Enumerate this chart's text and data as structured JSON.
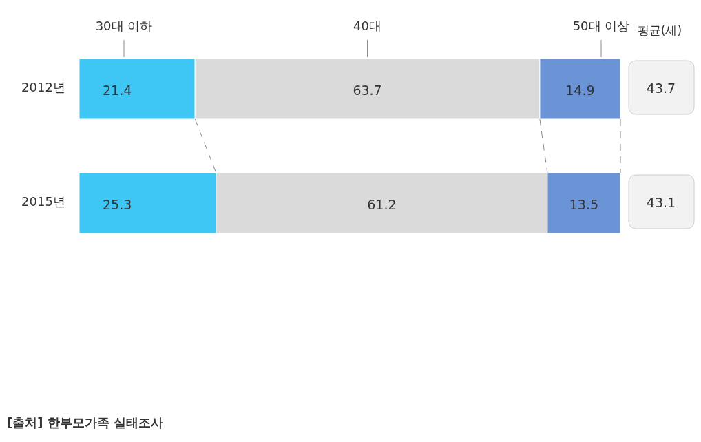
{
  "chart_data": [
    {
      "type": "bar",
      "orientation": "horizontal",
      "stacked": true,
      "categories": [
        "2012년",
        "2015년"
      ],
      "series": [
        {
          "name": "30대 이하",
          "color": "#3ec6f5",
          "values": [
            21.4,
            25.3
          ]
        },
        {
          "name": "40대",
          "color": "#dadada",
          "values": [
            63.7,
            61.2
          ]
        },
        {
          "name": "50대 이상",
          "color": "#6b94d6",
          "values": [
            14.9,
            13.5
          ]
        }
      ],
      "data_labels": true,
      "legend": "top",
      "annotations": [
        "[출처] 한부모가족 실태조사"
      ]
    },
    {
      "type": "other",
      "title": "평균(세)",
      "values": [
        43.7,
        43.1
      ],
      "data_labels": true
    }
  ]
}
